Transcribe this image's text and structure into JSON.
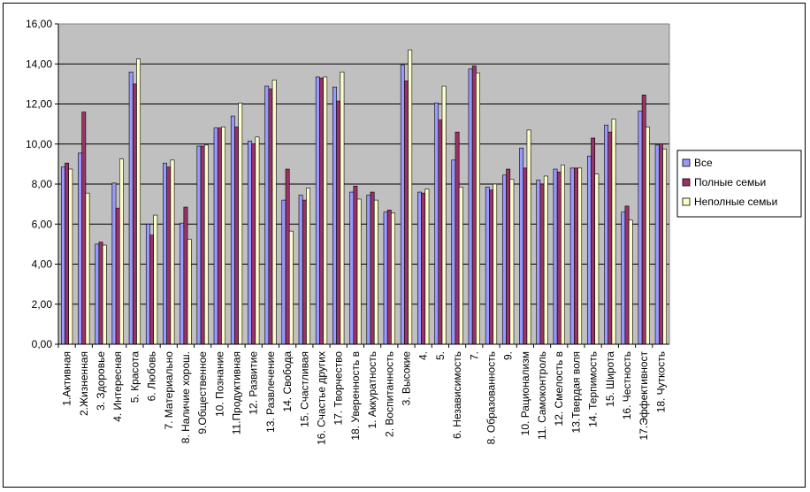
{
  "chart_data": {
    "type": "bar",
    "ylim": [
      0,
      16
    ],
    "yticks": [
      "0,00",
      "2,00",
      "4,00",
      "6,00",
      "8,00",
      "10,00",
      "12,00",
      "14,00",
      "16,00"
    ],
    "grid": true,
    "legend_position": "right",
    "categories": [
      "1.Активная",
      "2.Жизненная",
      "3. Здоровье",
      "4. Интересная",
      "5. Красота",
      "6. Любовь",
      "7. Материально",
      "8. Наличие хорош.",
      "9.Общественное",
      "10. Познание",
      "11.Продуктивная",
      "12. Развитие",
      "13. Развлечение",
      "14. Свобода",
      "15. Счастливая",
      "16. Счастье других",
      "17. Творчество",
      "18. Уверенность в",
      "1. Аккуратность",
      "2. Воспитанность",
      "3. Высокие",
      "4.",
      "5.",
      "6. Независимость",
      "7.",
      "8. Образованность",
      "9.",
      "10. Рационализм",
      "11. Самоконтроль",
      "12. Смелость в",
      "13.Твердая воля",
      "14. Терпимость",
      "15. Широта",
      "16. Честность",
      "17.Эффективност",
      "18. Чуткость"
    ],
    "series": [
      {
        "name": "Все",
        "color": "#9999ff",
        "values": [
          8.85,
          9.55,
          5.0,
          8.05,
          13.6,
          6.0,
          9.05,
          6.05,
          9.9,
          10.8,
          11.4,
          10.15,
          12.9,
          7.2,
          7.45,
          13.35,
          12.85,
          7.6,
          7.45,
          6.6,
          13.95,
          7.6,
          12.05,
          9.2,
          13.75,
          7.85,
          8.45,
          9.8,
          8.2,
          8.75,
          8.8,
          9.4,
          10.95,
          6.6,
          11.65,
          9.95
        ]
      },
      {
        "name": "Полные семьи",
        "color": "#993366",
        "values": [
          9.05,
          11.6,
          5.1,
          6.8,
          13.0,
          5.45,
          8.85,
          6.85,
          9.9,
          10.8,
          10.85,
          10.0,
          12.75,
          8.75,
          7.2,
          13.3,
          12.15,
          7.9,
          7.6,
          6.7,
          13.15,
          7.55,
          11.2,
          10.6,
          13.9,
          7.7,
          8.75,
          8.8,
          8.0,
          8.6,
          8.8,
          10.3,
          10.6,
          6.9,
          12.45,
          10.0
        ]
      },
      {
        "name": "Неполные семьи",
        "color": "#ffffcc",
        "values": [
          8.75,
          7.55,
          4.95,
          9.25,
          14.25,
          6.45,
          9.2,
          5.25,
          9.95,
          10.85,
          12.05,
          10.35,
          13.2,
          5.65,
          7.8,
          13.35,
          13.6,
          7.25,
          7.2,
          6.55,
          14.7,
          7.75,
          12.9,
          7.85,
          13.55,
          8.0,
          8.25,
          10.7,
          8.4,
          8.95,
          8.8,
          8.5,
          11.25,
          6.2,
          10.85,
          9.75
        ]
      }
    ]
  }
}
